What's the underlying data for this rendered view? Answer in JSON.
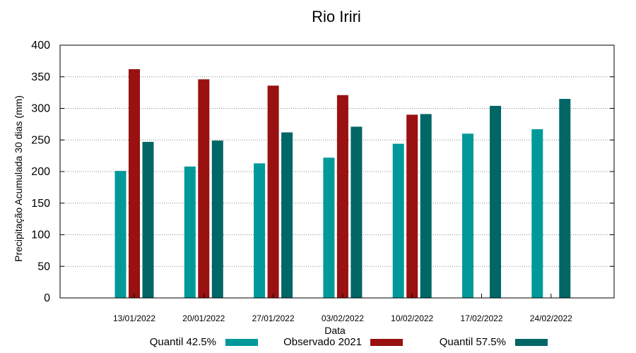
{
  "chart_data": {
    "type": "bar",
    "title": "Rio Iriri",
    "xlabel": "Data",
    "ylabel": "Precipitação Acumulada 30 dias (mm)",
    "ylim": [
      0,
      400
    ],
    "yticks": [
      0,
      50,
      100,
      150,
      200,
      250,
      300,
      350,
      400
    ],
    "grid": true,
    "legend_position": "bottom",
    "categories": [
      "13/01/2022",
      "20/01/2022",
      "27/01/2022",
      "03/02/2022",
      "10/02/2022",
      "17/02/2022",
      "24/02/2022"
    ],
    "series": [
      {
        "name": "Quantil 42.5%",
        "color": "#009999",
        "values": [
          201,
          208,
          213,
          222,
          244,
          260,
          267
        ]
      },
      {
        "name": "Observado 2021",
        "color": "#991111",
        "values": [
          362,
          346,
          336,
          321,
          290,
          null,
          null
        ]
      },
      {
        "name": "Quantil 57.5%",
        "color": "#006666",
        "values": [
          247,
          249,
          262,
          271,
          291,
          304,
          315
        ]
      }
    ]
  }
}
